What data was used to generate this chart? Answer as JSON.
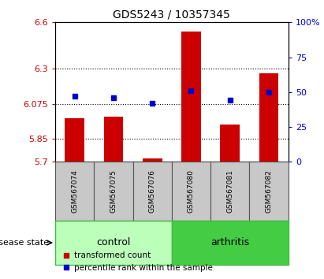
{
  "title": "GDS5243 / 10357345",
  "samples": [
    "GSM567074",
    "GSM567075",
    "GSM567076",
    "GSM567080",
    "GSM567081",
    "GSM567082"
  ],
  "transformed_count": [
    5.98,
    5.99,
    5.72,
    6.54,
    5.94,
    6.27
  ],
  "percentile_rank": [
    47,
    46,
    42,
    51,
    44,
    50
  ],
  "ylim_left": [
    5.7,
    6.6
  ],
  "ylim_right": [
    0,
    100
  ],
  "yticks_left": [
    5.7,
    5.85,
    6.075,
    6.3,
    6.6
  ],
  "ytick_labels_left": [
    "5.7",
    "5.85",
    "6.075",
    "6.3",
    "6.6"
  ],
  "yticks_right": [
    0,
    25,
    50,
    75,
    100
  ],
  "ytick_labels_right": [
    "0",
    "25",
    "50",
    "75",
    "100%"
  ],
  "hlines": [
    5.85,
    6.075,
    6.3
  ],
  "bar_color": "#cc0000",
  "dot_color": "#0000cc",
  "bar_width": 0.5,
  "group_configs": [
    {
      "x_positions": [
        0,
        1,
        2
      ],
      "label": "control",
      "face_color": "#bbffbb",
      "edge_color": "#44bb44"
    },
    {
      "x_positions": [
        3,
        4,
        5
      ],
      "label": "arthritis",
      "face_color": "#44cc44",
      "edge_color": "#44bb44"
    }
  ],
  "disease_state_label": "disease state",
  "legend_bar_label": "transformed count",
  "legend_dot_label": "percentile rank within the sample",
  "tick_label_color_left": "#cc0000",
  "tick_label_color_right": "#0000cc",
  "x_positions": [
    0,
    1,
    2,
    3,
    4,
    5
  ],
  "sample_box_color": "#c8c8c8",
  "sample_box_edge": "#555555"
}
